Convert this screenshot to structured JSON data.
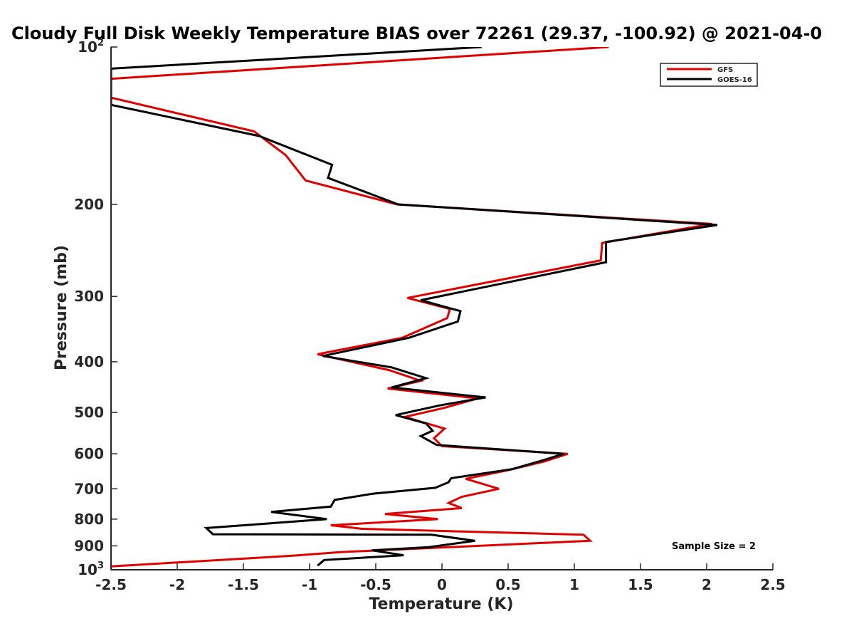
{
  "chart_data": {
    "type": "line",
    "title": "Cloudy Full Disk Weekly Temperature BIAS over 72261 (29.37, -100.92) @ 2021-04-0",
    "xlabel": "Temperature (K)",
    "ylabel": "Pressure (mb)",
    "xlim": [
      -2.5,
      2.5
    ],
    "ylim": [
      100,
      1000
    ],
    "y_scale": "log",
    "y_reversed": true,
    "x_ticks": [
      "-2.5",
      "-2",
      "-1.5",
      "-1",
      "-0.5",
      "0",
      "0.5",
      "1",
      "1.5",
      "2",
      "2.5"
    ],
    "y_ticks": [
      {
        "base": "10",
        "exp": "2",
        "value": 100
      },
      {
        "base": "200",
        "exp": "",
        "value": 200
      },
      {
        "base": "300",
        "exp": "",
        "value": 300
      },
      {
        "base": "400",
        "exp": "",
        "value": 400
      },
      {
        "base": "500",
        "exp": "",
        "value": 500
      },
      {
        "base": "600",
        "exp": "",
        "value": 600
      },
      {
        "base": "700",
        "exp": "",
        "value": 700
      },
      {
        "base": "800",
        "exp": "",
        "value": 800
      },
      {
        "base": "900",
        "exp": "",
        "value": 900
      },
      {
        "base": "10",
        "exp": "3",
        "value": 1000
      }
    ],
    "grid": false,
    "legend_position": "top-right",
    "annotation": "Sample Size = 2",
    "series": [
      {
        "name": "GFS",
        "color": "#e00000",
        "points": [
          [
            1.26,
            100
          ],
          [
            -2.5,
            115
          ],
          [
            -2.5,
            125
          ],
          [
            -1.42,
            145
          ],
          [
            -1.18,
            161
          ],
          [
            -1.03,
            180
          ],
          [
            -0.34,
            200
          ],
          [
            2.04,
            218
          ],
          [
            1.21,
            237
          ],
          [
            1.2,
            256
          ],
          [
            -0.26,
            302
          ],
          [
            0.06,
            317
          ],
          [
            0.04,
            330
          ],
          [
            -0.3,
            360
          ],
          [
            -0.94,
            387
          ],
          [
            -0.4,
            415
          ],
          [
            -0.16,
            435
          ],
          [
            -0.41,
            450
          ],
          [
            0.27,
            470
          ],
          [
            0.02,
            490
          ],
          [
            -0.28,
            510
          ],
          [
            0.02,
            537
          ],
          [
            -0.06,
            560
          ],
          [
            0,
            580
          ],
          [
            0.95,
            600
          ],
          [
            0.78,
            620
          ],
          [
            0.5,
            645
          ],
          [
            0.18,
            670
          ],
          [
            0.43,
            700
          ],
          [
            0.15,
            725
          ],
          [
            0.05,
            745
          ],
          [
            0.15,
            762
          ],
          [
            -0.43,
            782
          ],
          [
            -0.03,
            800
          ],
          [
            -0.84,
            822
          ],
          [
            -0.6,
            835
          ],
          [
            1.07,
            857
          ],
          [
            1.12,
            880
          ],
          [
            -0.76,
            925
          ],
          [
            -1.13,
            940
          ],
          [
            -2.5,
            985
          ]
        ]
      },
      {
        "name": "GOES-16",
        "color": "#000000",
        "points": [
          [
            0.3,
            100
          ],
          [
            -2.5,
            110
          ],
          [
            -2.5,
            129
          ],
          [
            -1.38,
            148
          ],
          [
            -0.83,
            168
          ],
          [
            -0.86,
            178
          ],
          [
            -0.33,
            200
          ],
          [
            2.08,
            219
          ],
          [
            1.24,
            236
          ],
          [
            1.24,
            258
          ],
          [
            -0.16,
            305
          ],
          [
            0.14,
            320
          ],
          [
            0.12,
            335
          ],
          [
            -0.25,
            360
          ],
          [
            -0.9,
            390
          ],
          [
            -0.38,
            410
          ],
          [
            -0.12,
            430
          ],
          [
            -0.38,
            448
          ],
          [
            0.33,
            468
          ],
          [
            -0.02,
            485
          ],
          [
            -0.35,
            506
          ],
          [
            -0.12,
            525
          ],
          [
            -0.07,
            542
          ],
          [
            -0.16,
            555
          ],
          [
            -0.04,
            577
          ],
          [
            0.92,
            600
          ],
          [
            0.74,
            620
          ],
          [
            0.53,
            642
          ],
          [
            0.07,
            668
          ],
          [
            0.05,
            680
          ],
          [
            -0.05,
            697
          ],
          [
            -0.52,
            715
          ],
          [
            -0.81,
            735
          ],
          [
            -0.84,
            757
          ],
          [
            -1.29,
            775
          ],
          [
            -0.87,
            800
          ],
          [
            -1.78,
            832
          ],
          [
            -1.73,
            855
          ],
          [
            -0.08,
            857
          ],
          [
            0.25,
            880
          ],
          [
            -0.1,
            905
          ],
          [
            -0.53,
            918
          ],
          [
            -0.29,
            938
          ],
          [
            -0.89,
            958
          ],
          [
            -0.94,
            982
          ]
        ]
      }
    ]
  }
}
